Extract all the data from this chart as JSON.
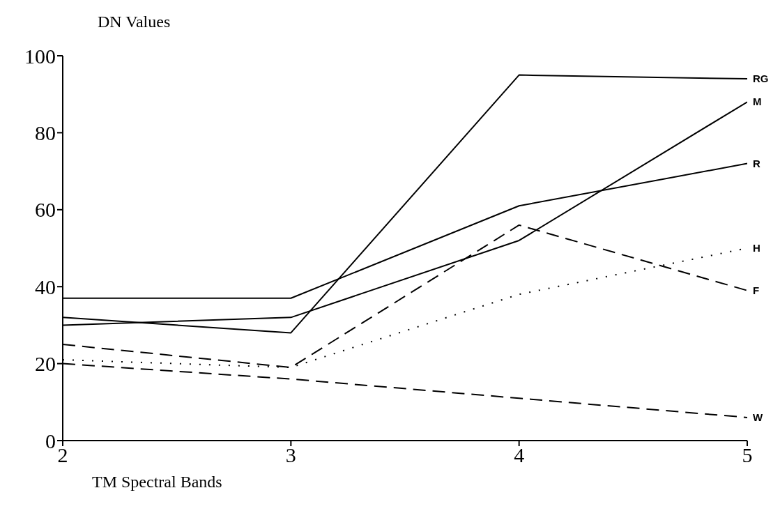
{
  "chart_data": {
    "type": "line",
    "xlabel": "TM Spectral Bands",
    "ylabel": "DN Values",
    "x": [
      2,
      3,
      4,
      5
    ],
    "xlim": [
      2,
      5
    ],
    "xticks": [
      2,
      3,
      4,
      5
    ],
    "ylim": [
      0,
      100
    ],
    "yticks": [
      0,
      20,
      40,
      60,
      80,
      100
    ],
    "grid": false,
    "legend": false,
    "marker": "none",
    "series": [
      {
        "name": "RG",
        "color": "#000000",
        "line_style": "solid",
        "values": [
          32,
          28,
          95,
          94
        ]
      },
      {
        "name": "M",
        "color": "#000000",
        "line_style": "solid",
        "values": [
          30,
          32,
          52,
          88
        ]
      },
      {
        "name": "R",
        "color": "#000000",
        "line_style": "solid",
        "values": [
          37,
          37,
          61,
          72
        ]
      },
      {
        "name": "H",
        "color": "#000000",
        "line_style": "dotted",
        "values": [
          21,
          19,
          38,
          50
        ]
      },
      {
        "name": "F",
        "color": "#000000",
        "line_style": "dashed",
        "values": [
          25,
          19,
          56,
          39
        ]
      },
      {
        "name": "W",
        "color": "#000000",
        "line_style": "dashed",
        "values": [
          20,
          16,
          11,
          6
        ]
      }
    ]
  }
}
